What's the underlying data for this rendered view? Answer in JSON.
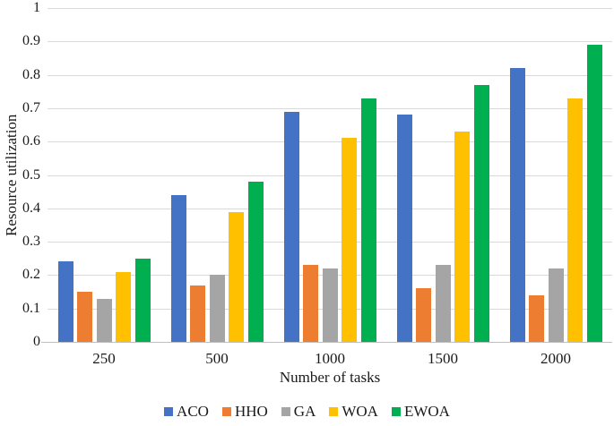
{
  "chart_data": {
    "type": "bar",
    "title": "",
    "xlabel": "Number of tasks",
    "ylabel": "Resource utilization",
    "categories": [
      "250",
      "500",
      "1000",
      "1500",
      "2000"
    ],
    "series": [
      {
        "name": "ACO",
        "color": "#4472C4",
        "values": [
          0.24,
          0.44,
          0.69,
          0.68,
          0.82
        ]
      },
      {
        "name": "HHO",
        "color": "#ED7D31",
        "values": [
          0.15,
          0.17,
          0.23,
          0.16,
          0.14
        ]
      },
      {
        "name": "GA",
        "color": "#A5A5A5",
        "values": [
          0.13,
          0.2,
          0.22,
          0.23,
          0.22
        ]
      },
      {
        "name": "WOA",
        "color": "#FFC000",
        "values": [
          0.21,
          0.39,
          0.61,
          0.63,
          0.73
        ]
      },
      {
        "name": "EWOA",
        "color": "#00B050",
        "values": [
          0.25,
          0.48,
          0.73,
          0.77,
          0.89
        ]
      }
    ],
    "ylim": [
      0,
      1
    ],
    "ytick_labels": [
      "0",
      "0.1",
      "0.2",
      "0.3",
      "0.4",
      "0.5",
      "0.6",
      "0.7",
      "0.8",
      "0.9",
      "1"
    ],
    "grid": true,
    "legend_position": "bottom",
    "gridline_color": "#D9D9D9",
    "axis_line_color": "#BFBFBF",
    "text_color": "#1A1A1A"
  }
}
